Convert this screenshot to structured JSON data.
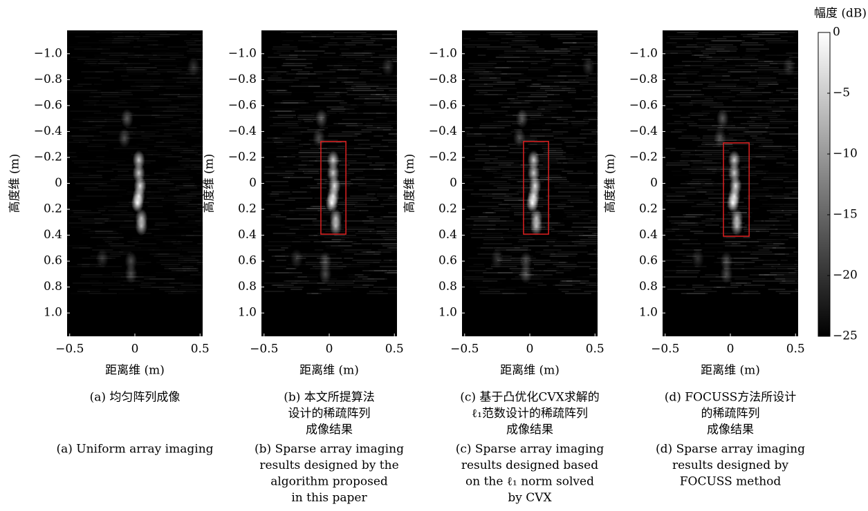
{
  "chart_data": [
    {
      "type": "heatmap",
      "xlabel": "距离维 (m)",
      "ylabel": "高度维 (m)",
      "xlim": [
        -0.52,
        0.52
      ],
      "ylim": [
        1.18,
        -1.18
      ],
      "xticks": [
        {
          "value": -0.5,
          "label": "−0.5"
        },
        0,
        0.5
      ],
      "yticks": [
        {
          "value": -1,
          "label": "−1.0"
        },
        {
          "value": -0.8,
          "label": "−0.8"
        },
        {
          "value": -0.6,
          "label": "−0.6"
        },
        {
          "value": -0.4,
          "label": "−0.4"
        },
        {
          "value": -0.2,
          "label": "−0.2"
        },
        0,
        0.2,
        0.4,
        0.6,
        0.8,
        {
          "value": 1,
          "label": "1.0"
        }
      ],
      "caption_cn": [
        "(a) 均匀阵列成像"
      ],
      "caption_en": [
        "(a) Uniform array imaging"
      ]
    },
    {
      "type": "heatmap",
      "xlabel": "距离维 (m)",
      "ylabel": "高度维 (m)",
      "xlim": [
        -0.52,
        0.52
      ],
      "ylim": [
        1.18,
        -1.18
      ],
      "xticks": [
        {
          "value": -0.5,
          "label": "−0.5"
        },
        0,
        0.5
      ],
      "yticks": [
        {
          "value": -1,
          "label": "−1.0"
        },
        {
          "value": -0.8,
          "label": "−0.8"
        },
        {
          "value": -0.6,
          "label": "−0.6"
        },
        {
          "value": -0.4,
          "label": "−0.4"
        },
        {
          "value": -0.2,
          "label": "−0.2"
        },
        0,
        0.2,
        0.4,
        0.6,
        0.8,
        {
          "value": 1,
          "label": "1.0"
        }
      ],
      "highlight": {
        "x": [
          -0.064,
          0.128
        ],
        "y": [
          -0.323,
          0.392
        ],
        "color": "#e02020"
      },
      "caption_cn": [
        "(b) 本文所提算法",
        "设计的稀疏阵列",
        "成像结果"
      ],
      "caption_en": [
        "(b) Sparse array imaging",
        "results designed by the",
        "algorithm proposed",
        "in this paper"
      ]
    },
    {
      "type": "heatmap",
      "xlabel": "距离维 (m)",
      "ylabel": "高度维 (m)",
      "xlim": [
        -0.52,
        0.52
      ],
      "ylim": [
        1.18,
        -1.18
      ],
      "xticks": [
        {
          "value": -0.5,
          "label": "−0.5"
        },
        0,
        0.5
      ],
      "yticks": [
        {
          "value": -1,
          "label": "−1.0"
        },
        {
          "value": -0.8,
          "label": "−0.8"
        },
        {
          "value": -0.6,
          "label": "−0.6"
        },
        {
          "value": -0.4,
          "label": "−0.4"
        },
        {
          "value": -0.2,
          "label": "−0.2"
        },
        0,
        0.2,
        0.4,
        0.6,
        0.8,
        {
          "value": 1,
          "label": "1.0"
        }
      ],
      "highlight": {
        "x": [
          -0.048,
          0.144
        ],
        "y": [
          -0.323,
          0.392
        ],
        "color": "#e02020"
      },
      "caption_cn": [
        "(c) 基于凸优化CVX求解的",
        "ℓ₁范数设计的稀疏阵列",
        "成像结果"
      ],
      "caption_en": [
        "(c) Sparse array imaging",
        "results designed based",
        "on the ℓ₁ norm solved",
        "by CVX"
      ]
    },
    {
      "type": "heatmap",
      "xlabel": "距离维 (m)",
      "ylabel": "高度维 (m)",
      "xlim": [
        -0.52,
        0.52
      ],
      "ylim": [
        1.18,
        -1.18
      ],
      "xticks": [
        {
          "value": -0.5,
          "label": "−0.5"
        },
        0,
        0.5
      ],
      "yticks": [
        {
          "value": -1,
          "label": "−1.0"
        },
        {
          "value": -0.8,
          "label": "−0.8"
        },
        {
          "value": -0.6,
          "label": "−0.6"
        },
        {
          "value": -0.4,
          "label": "−0.4"
        },
        {
          "value": -0.2,
          "label": "−0.2"
        },
        0,
        0.2,
        0.4,
        0.6,
        0.8,
        {
          "value": 1,
          "label": "1.0"
        }
      ],
      "highlight": {
        "x": [
          -0.053,
          0.144
        ],
        "y": [
          -0.312,
          0.408
        ],
        "color": "#e02020"
      },
      "caption_cn": [
        "(d) FOCUSS方法所设计",
        "的稀疏阵列",
        "成像结果"
      ],
      "caption_en": [
        "(d) Sparse array imaging",
        "results designed by",
        "FOCUSS method"
      ]
    },
    {
      "type": "colorbar",
      "label": "幅度 (dB)",
      "clim": [
        -25,
        0
      ],
      "ticks": [
        0,
        {
          "value": -5,
          "label": "−5"
        },
        {
          "value": -10,
          "label": "−10"
        },
        {
          "value": -15,
          "label": "−15"
        },
        {
          "value": -20,
          "label": "−20"
        },
        {
          "value": -25,
          "label": "−25"
        }
      ]
    }
  ]
}
